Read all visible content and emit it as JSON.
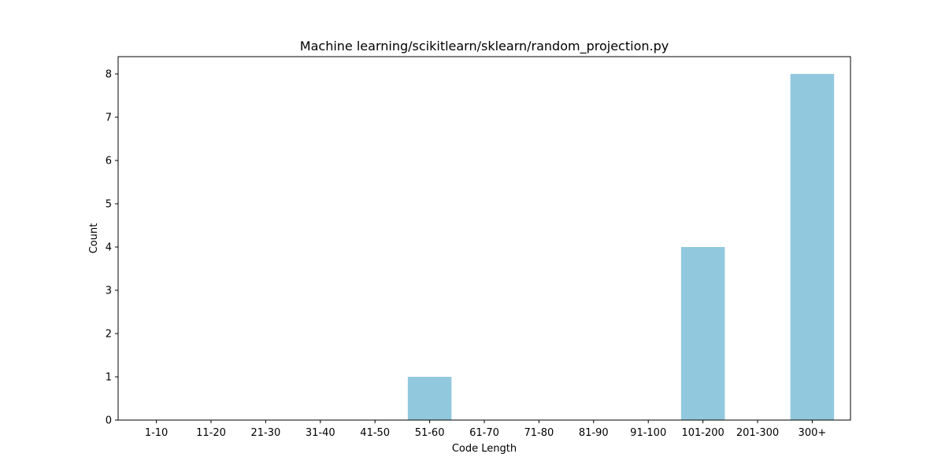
{
  "chart_data": {
    "type": "bar",
    "title": "Machine learning/scikitlearn/sklearn/random_projection.py",
    "xlabel": "Code Length",
    "ylabel": "Count",
    "categories": [
      "1-10",
      "11-20",
      "21-30",
      "31-40",
      "41-50",
      "51-60",
      "61-70",
      "71-80",
      "81-90",
      "91-100",
      "101-200",
      "201-300",
      "300+"
    ],
    "values": [
      0,
      0,
      0,
      0,
      0,
      1,
      0,
      0,
      0,
      0,
      4,
      0,
      8
    ],
    "ylim": [
      0,
      8.4
    ],
    "yticks": [
      0,
      1,
      2,
      3,
      4,
      5,
      6,
      7,
      8
    ],
    "grid": false,
    "bar_color": "#92c8dd"
  }
}
